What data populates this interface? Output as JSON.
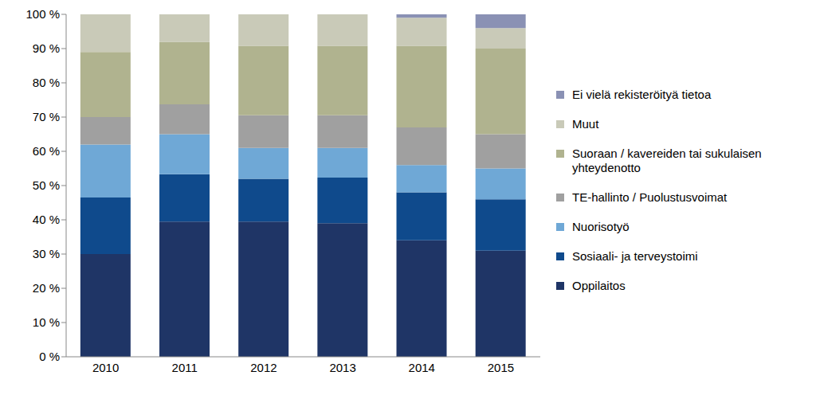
{
  "chart_data": {
    "type": "bar",
    "stacked": true,
    "grid": false,
    "legend": "right",
    "categories": [
      "2010",
      "2011",
      "2012",
      "2013",
      "2014",
      "2015"
    ],
    "ylim": [
      0,
      100
    ],
    "yticks": [
      {
        "value": 0,
        "label": "0 %"
      },
      {
        "value": 10,
        "label": "10 %"
      },
      {
        "value": 20,
        "label": "20 %"
      },
      {
        "value": 30,
        "label": "30 %"
      },
      {
        "value": 40,
        "label": "40 %"
      },
      {
        "value": 50,
        "label": "50 %"
      },
      {
        "value": 60,
        "label": "60 %"
      },
      {
        "value": 70,
        "label": "70 %"
      },
      {
        "value": 80,
        "label": "80 %"
      },
      {
        "value": 90,
        "label": "90 %"
      },
      {
        "value": 100,
        "label": "100 %"
      }
    ],
    "series": [
      {
        "name": "Oppilaitos",
        "color": "#1f3566",
        "values": [
          30,
          39.5,
          39.5,
          39,
          34,
          31
        ]
      },
      {
        "name": "Sosiaali- ja terveystoimi",
        "color": "#0f4a8c",
        "values": [
          16.5,
          13.8,
          12.5,
          13.3,
          14,
          15
        ]
      },
      {
        "name": "Nuorisotyö",
        "color": "#6fa8d6",
        "values": [
          15.5,
          11.7,
          9,
          8.7,
          8,
          9
        ]
      },
      {
        "name": "TE-hallinto / Puolustusvoimat",
        "color": "#a0a0a0",
        "values": [
          8,
          8.7,
          9.5,
          9.5,
          11,
          10
        ]
      },
      {
        "name": "Suoraan / kavereiden tai sukulaisen yhteydenotto",
        "color": "#b0b38f",
        "values": [
          19,
          18.3,
          20.3,
          20.3,
          23.8,
          25
        ]
      },
      {
        "name": "Muut",
        "color": "#c9cab8",
        "values": [
          11,
          8,
          9.2,
          9.2,
          8.2,
          6
        ]
      },
      {
        "name": "Ei vielä rekisteröityä tietoa",
        "color": "#8a91b4",
        "values": [
          0,
          0,
          0,
          0,
          1,
          4
        ]
      }
    ]
  }
}
